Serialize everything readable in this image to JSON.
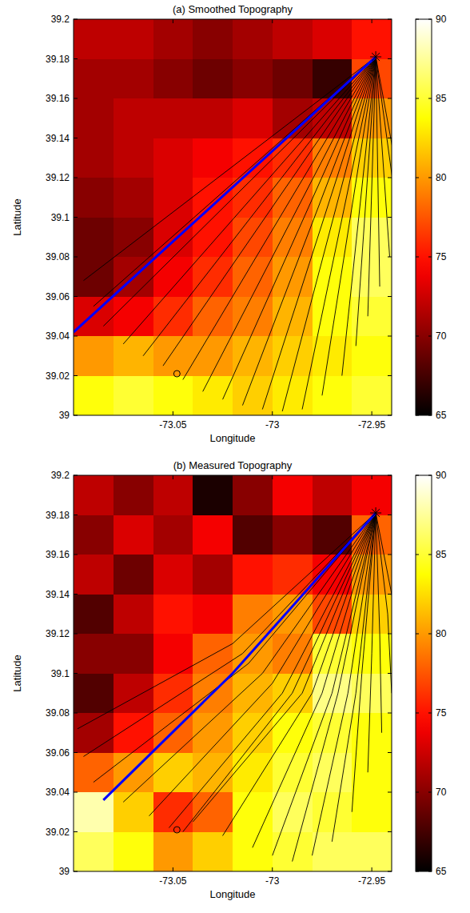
{
  "chart_data": [
    {
      "type": "heatmap",
      "title": "(a) Smoothed Topography",
      "x_label": "Longitude",
      "y_label": "Latitude",
      "xlim": [
        -73.1,
        -72.94
      ],
      "ylim": [
        39,
        39.2
      ],
      "xticks": [
        -73.05,
        -73,
        -72.95
      ],
      "yticks": [
        39,
        39.02,
        39.04,
        39.06,
        39.08,
        39.1,
        39.12,
        39.14,
        39.16,
        39.18,
        39.2
      ],
      "x_edges": [
        -73.1,
        -73.08,
        -73.06,
        -73.04,
        -73.02,
        -73,
        -72.98,
        -72.96,
        -72.94
      ],
      "y_edges": [
        39.2,
        39.18,
        39.16,
        39.14,
        39.12,
        39.1,
        39.08,
        39.06,
        39.04,
        39.02,
        39
      ],
      "cells": [
        [
          72,
          72,
          71,
          70,
          71,
          72,
          73,
          75
        ],
        [
          71,
          71,
          70,
          69,
          70,
          69,
          67,
          77
        ],
        [
          71,
          72,
          72,
          72,
          73,
          71,
          72,
          80
        ],
        [
          71,
          72,
          73,
          74,
          75,
          76,
          79,
          82
        ],
        [
          70,
          71,
          73,
          75,
          76,
          78,
          81,
          84
        ],
        [
          69,
          70,
          73,
          75,
          77,
          79,
          83,
          86
        ],
        [
          69,
          71,
          74,
          76,
          78,
          80,
          84,
          86
        ],
        [
          73,
          74,
          76,
          78,
          79,
          81,
          84,
          85
        ],
        [
          80,
          81,
          80,
          80,
          81,
          82,
          83,
          84
        ],
        [
          84,
          85,
          84,
          83,
          82,
          83,
          84,
          85
        ]
      ],
      "colorbar_range": [
        65,
        90
      ],
      "colorbar_ticks": [
        65,
        70,
        75,
        80,
        85,
        90
      ],
      "series": [
        {
          "type": "line",
          "color": "#000000",
          "x": [
            -72.948,
            -73.095
          ],
          "values": [
            39.181,
            39.068
          ]
        },
        {
          "type": "line",
          "color": "#000000",
          "x": [
            -72.948,
            -73.09
          ],
          "values": [
            39.181,
            39.055
          ]
        },
        {
          "type": "line",
          "color": "#000000",
          "x": [
            -72.948,
            -73.085
          ],
          "values": [
            39.181,
            39.045
          ]
        },
        {
          "type": "line",
          "color": "#000000",
          "x": [
            -72.948,
            -73.075
          ],
          "values": [
            39.181,
            39.036
          ]
        },
        {
          "type": "line",
          "color": "#000000",
          "x": [
            -72.948,
            -73.065
          ],
          "values": [
            39.181,
            39.03
          ]
        },
        {
          "type": "line",
          "color": "#000000",
          "x": [
            -72.948,
            -73.055
          ],
          "values": [
            39.181,
            39.025
          ]
        },
        {
          "type": "line",
          "color": "#000000",
          "x": [
            -72.948,
            -73.045
          ],
          "values": [
            39.181,
            39.018
          ]
        },
        {
          "type": "line",
          "color": "#000000",
          "x": [
            -72.948,
            -73.035
          ],
          "values": [
            39.181,
            39.012
          ]
        },
        {
          "type": "line",
          "color": "#000000",
          "x": [
            -72.948,
            -73.025
          ],
          "values": [
            39.181,
            39.008
          ]
        },
        {
          "type": "line",
          "color": "#000000",
          "x": [
            -72.948,
            -73.015
          ],
          "values": [
            39.181,
            39.005
          ]
        },
        {
          "type": "line",
          "color": "#000000",
          "x": [
            -72.948,
            -73.005
          ],
          "values": [
            39.181,
            39.003
          ]
        },
        {
          "type": "line",
          "color": "#000000",
          "x": [
            -72.948,
            -72.995
          ],
          "values": [
            39.181,
            39.002
          ]
        },
        {
          "type": "line",
          "color": "#000000",
          "x": [
            -72.948,
            -72.985
          ],
          "values": [
            39.181,
            39.003
          ]
        },
        {
          "type": "line",
          "color": "#000000",
          "x": [
            -72.948,
            -72.975
          ],
          "values": [
            39.181,
            39.01
          ]
        },
        {
          "type": "line",
          "color": "#000000",
          "x": [
            -72.948,
            -72.965
          ],
          "values": [
            39.181,
            39.02
          ]
        },
        {
          "type": "line",
          "color": "#000000",
          "x": [
            -72.948,
            -72.958
          ],
          "values": [
            39.181,
            39.035
          ]
        },
        {
          "type": "line",
          "color": "#000000",
          "x": [
            -72.948,
            -72.952
          ],
          "values": [
            39.181,
            39.05
          ]
        },
        {
          "type": "line",
          "color": "#000000",
          "x": [
            -72.948,
            -72.946
          ],
          "values": [
            39.181,
            39.065
          ]
        },
        {
          "type": "line",
          "color": "#000000",
          "x": [
            -72.948,
            -72.941
          ],
          "values": [
            39.181,
            39.08
          ]
        },
        {
          "type": "line",
          "color": "#000000",
          "x": [
            -72.948,
            -72.937
          ],
          "values": [
            39.181,
            39.1
          ]
        },
        {
          "type": "line",
          "color": "#000000",
          "x": [
            -72.948,
            -72.935
          ],
          "values": [
            39.181,
            39.11
          ]
        },
        {
          "type": "line",
          "color": "#0000ff",
          "x": [
            -72.948,
            -73.1
          ],
          "values": [
            39.181,
            39.042
          ]
        },
        {
          "type": "scatter",
          "marker": "star",
          "color": "#000000",
          "x": [
            -72.948
          ],
          "values": [
            39.181
          ]
        },
        {
          "type": "scatter",
          "marker": "circle",
          "color": "#000000",
          "x": [
            -73.048
          ],
          "values": [
            39.021
          ]
        }
      ]
    },
    {
      "type": "heatmap",
      "title": "(b) Measured Topography",
      "x_label": "Longitude",
      "y_label": "Latitude",
      "xlim": [
        -73.1,
        -72.94
      ],
      "ylim": [
        39,
        39.2
      ],
      "xticks": [
        -73.05,
        -73,
        -72.95
      ],
      "yticks": [
        39,
        39.02,
        39.04,
        39.06,
        39.08,
        39.1,
        39.12,
        39.14,
        39.16,
        39.18,
        39.2
      ],
      "x_edges": [
        -73.1,
        -73.08,
        -73.06,
        -73.04,
        -73.02,
        -73,
        -72.98,
        -72.96,
        -72.94
      ],
      "y_edges": [
        39.2,
        39.18,
        39.16,
        39.14,
        39.12,
        39.1,
        39.08,
        39.06,
        39.04,
        39.02,
        39
      ],
      "cells": [
        [
          72,
          70,
          72,
          66,
          70,
          74,
          72,
          74
        ],
        [
          70,
          73,
          71,
          74,
          68,
          70,
          68,
          78
        ],
        [
          72,
          69,
          73,
          71,
          75,
          76,
          74,
          80
        ],
        [
          68,
          72,
          75,
          74,
          79,
          80,
          77,
          82
        ],
        [
          70,
          70,
          74,
          78,
          80,
          79,
          85,
          84
        ],
        [
          68,
          72,
          76,
          79,
          81,
          82,
          87,
          86
        ],
        [
          71,
          75,
          78,
          80,
          82,
          84,
          85,
          84
        ],
        [
          78,
          80,
          82,
          81,
          83,
          85,
          86,
          84
        ],
        [
          88,
          82,
          76,
          78,
          84,
          86,
          85,
          84
        ],
        [
          86,
          84,
          80,
          82,
          84,
          85,
          86,
          86
        ]
      ],
      "colorbar_range": [
        65,
        90
      ],
      "colorbar_ticks": [
        65,
        70,
        75,
        80,
        85,
        90
      ],
      "series": [
        {
          "type": "line",
          "color": "#000000",
          "x": [
            -72.948,
            -73.02,
            -73.098
          ],
          "values": [
            39.181,
            39.115,
            39.072
          ]
        },
        {
          "type": "line",
          "color": "#000000",
          "x": [
            -72.948,
            -73.015,
            -73.095
          ],
          "values": [
            39.181,
            39.11,
            39.058
          ]
        },
        {
          "type": "line",
          "color": "#000000",
          "x": [
            -72.948,
            -73.012,
            -73.09
          ],
          "values": [
            39.181,
            39.105,
            39.045
          ]
        },
        {
          "type": "line",
          "color": "#000000",
          "x": [
            -72.948,
            -73.005,
            -73.075
          ],
          "values": [
            39.181,
            39.1,
            39.035
          ]
        },
        {
          "type": "line",
          "color": "#000000",
          "x": [
            -72.948,
            -73.0,
            -73.062
          ],
          "values": [
            39.181,
            39.095,
            39.028
          ]
        },
        {
          "type": "line",
          "color": "#000000",
          "x": [
            -72.948,
            -72.995,
            -73.052
          ],
          "values": [
            39.181,
            39.09,
            39.022
          ]
        },
        {
          "type": "line",
          "color": "#000000",
          "x": [
            -72.948,
            -72.99,
            -73.045
          ],
          "values": [
            39.181,
            39.09,
            39.02
          ]
        },
        {
          "type": "line",
          "color": "#000000",
          "x": [
            -72.948,
            -72.985,
            -73.04
          ],
          "values": [
            39.181,
            39.09,
            39.025
          ]
        },
        {
          "type": "line",
          "color": "#000000",
          "x": [
            -72.948,
            -72.98,
            -73.025
          ],
          "values": [
            39.181,
            39.09,
            39.018
          ]
        },
        {
          "type": "line",
          "color": "#000000",
          "x": [
            -72.948,
            -72.975,
            -73.01
          ],
          "values": [
            39.181,
            39.09,
            39.012
          ]
        },
        {
          "type": "line",
          "color": "#000000",
          "x": [
            -72.948,
            -72.97,
            -73.0
          ],
          "values": [
            39.181,
            39.09,
            39.008
          ]
        },
        {
          "type": "line",
          "color": "#000000",
          "x": [
            -72.948,
            -72.967,
            -72.99
          ],
          "values": [
            39.181,
            39.09,
            39.005
          ]
        },
        {
          "type": "line",
          "color": "#000000",
          "x": [
            -72.948,
            -72.962,
            -72.98
          ],
          "values": [
            39.181,
            39.09,
            39.008
          ]
        },
        {
          "type": "line",
          "color": "#000000",
          "x": [
            -72.948,
            -72.958,
            -72.97
          ],
          "values": [
            39.181,
            39.09,
            39.015
          ]
        },
        {
          "type": "line",
          "color": "#000000",
          "x": [
            -72.948,
            -72.955,
            -72.96
          ],
          "values": [
            39.181,
            39.1,
            39.03
          ]
        },
        {
          "type": "line",
          "color": "#000000",
          "x": [
            -72.948,
            -72.95,
            -72.952
          ],
          "values": [
            39.181,
            39.11,
            39.05
          ]
        },
        {
          "type": "line",
          "color": "#000000",
          "x": [
            -72.948,
            -72.946,
            -72.945
          ],
          "values": [
            39.181,
            39.12,
            39.07
          ]
        },
        {
          "type": "line",
          "color": "#000000",
          "x": [
            -72.948,
            -72.942,
            -72.94
          ],
          "values": [
            39.181,
            39.13,
            39.09
          ]
        },
        {
          "type": "line",
          "color": "#000000",
          "x": [
            -72.948,
            -72.94,
            -72.935
          ],
          "values": [
            39.181,
            39.14,
            39.11
          ]
        },
        {
          "type": "line",
          "color": "#0000ff",
          "x": [
            -72.948,
            -73.02,
            -73.085
          ],
          "values": [
            39.181,
            39.1,
            39.036
          ]
        },
        {
          "type": "scatter",
          "marker": "star",
          "color": "#000000",
          "x": [
            -72.948
          ],
          "values": [
            39.181
          ]
        },
        {
          "type": "scatter",
          "marker": "circle",
          "color": "#000000",
          "x": [
            -73.048
          ],
          "values": [
            39.021
          ]
        }
      ]
    }
  ]
}
